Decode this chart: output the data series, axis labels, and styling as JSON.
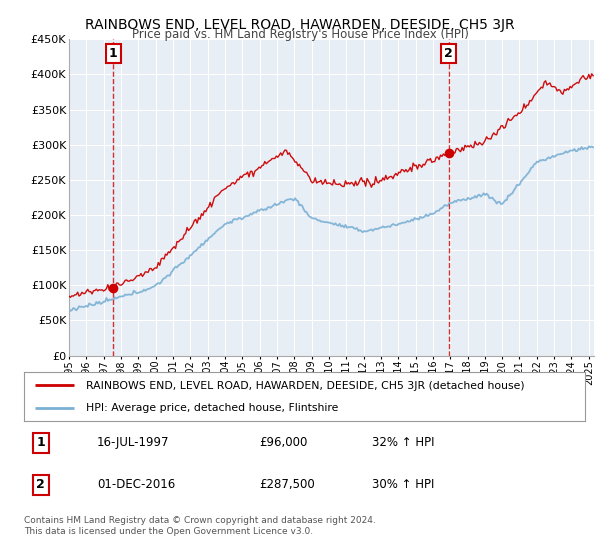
{
  "title": "RAINBOWS END, LEVEL ROAD, HAWARDEN, DEESIDE, CH5 3JR",
  "subtitle": "Price paid vs. HM Land Registry's House Price Index (HPI)",
  "ylabel_ticks": [
    "£0",
    "£50K",
    "£100K",
    "£150K",
    "£200K",
    "£250K",
    "£300K",
    "£350K",
    "£400K",
    "£450K"
  ],
  "ylabel_values": [
    0,
    50000,
    100000,
    150000,
    200000,
    250000,
    300000,
    350000,
    400000,
    450000
  ],
  "ylim": [
    0,
    450000
  ],
  "xlim_start": 1995.0,
  "xlim_end": 2025.3,
  "sale1_x": 1997.54,
  "sale1_y": 96000,
  "sale1_label": "1",
  "sale2_x": 2016.92,
  "sale2_y": 287500,
  "sale2_label": "2",
  "legend_line1": "RAINBOWS END, LEVEL ROAD, HAWARDEN, DEESIDE, CH5 3JR (detached house)",
  "legend_line2": "HPI: Average price, detached house, Flintshire",
  "footnote": "Contains HM Land Registry data © Crown copyright and database right 2024.\nThis data is licensed under the Open Government Licence v3.0.",
  "red_color": "#cc0000",
  "blue_color": "#7ab0d4",
  "bg_color": "#e8eef5",
  "grid_color": "#ffffff",
  "dashed_color": "#cc0000",
  "title_fontsize": 10,
  "subtitle_fontsize": 9
}
